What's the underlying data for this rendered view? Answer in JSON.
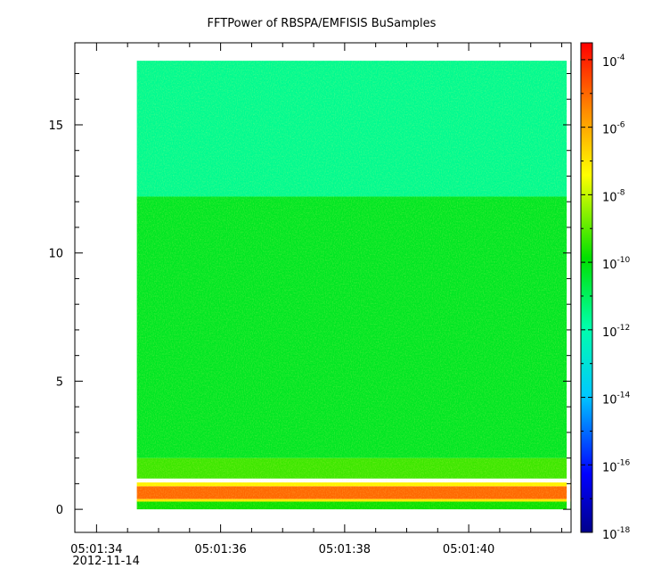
{
  "chart_data": {
    "type": "heatmap",
    "title": "FFTPower of RBSPA/EMFISIS  BuSamples",
    "x_axis": {
      "ticks": [
        {
          "time": "05:01:34",
          "date": "2012-11-14"
        },
        {
          "time": "05:01:36",
          "date": ""
        },
        {
          "time": "05:01:38",
          "date": ""
        },
        {
          "time": "05:01:40",
          "date": ""
        }
      ],
      "range_seconds_after_05_01_34": [
        -0.35,
        7.65
      ],
      "data_start": 0.65,
      "gap": [
        7.58,
        7.64
      ]
    },
    "y_axis": {
      "ticks": [
        "0",
        "5",
        "10",
        "15"
      ],
      "tick_values": [
        0,
        5,
        10,
        15
      ],
      "range": [
        -0.9,
        18.2
      ],
      "data_max": 17.5
    },
    "colorbar": {
      "scale": "log",
      "range_exponent": [
        -18,
        -3.5
      ],
      "ticks": [
        {
          "base": "10",
          "exp": "-4",
          "value": -4
        },
        {
          "base": "10",
          "exp": "-6",
          "value": -6
        },
        {
          "base": "10",
          "exp": "-8",
          "value": -8
        },
        {
          "base": "10",
          "exp": "-10",
          "value": -10
        },
        {
          "base": "10",
          "exp": "-12",
          "value": -12
        },
        {
          "base": "10",
          "exp": "-14",
          "value": -14
        },
        {
          "base": "10",
          "exp": "-16",
          "value": -16
        },
        {
          "base": "10",
          "exp": "-18",
          "value": -18
        }
      ],
      "colors": [
        "#00008b",
        "#0000ff",
        "#00c8ff",
        "#00ffaa",
        "#00e000",
        "#ffff00",
        "#ff8c00",
        "#ff0000"
      ]
    },
    "bands": [
      {
        "y_from": 12.2,
        "y_to": 17.5,
        "power_exponent": -11.6
      },
      {
        "y_from": 2.0,
        "y_to": 12.2,
        "power_exponent": -10.3
      },
      {
        "y_from": 1.2,
        "y_to": 2.0,
        "power_exponent": -9.3
      },
      {
        "y_from": 0.4,
        "y_to": 0.9,
        "power_exponent": -5.0
      },
      {
        "y_from": 0.0,
        "y_to": 0.35,
        "power_exponent": -9.8
      }
    ]
  }
}
